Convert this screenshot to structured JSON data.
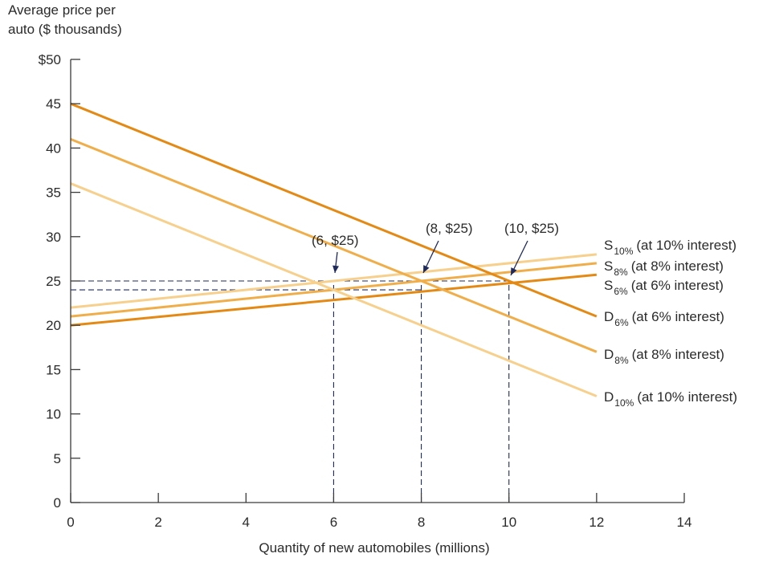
{
  "chart_data": {
    "type": "line",
    "ylabel_line1": "Average price per",
    "ylabel_line2": "auto ($ thousands)",
    "xlabel": "Quantity of new automobiles (millions)",
    "xlim": [
      0,
      14
    ],
    "ylim": [
      0,
      50
    ],
    "x_ticks": [
      "0",
      "2",
      "4",
      "6",
      "8",
      "10",
      "12",
      "14"
    ],
    "y_ticks": [
      "0",
      "5",
      "10",
      "15",
      "20",
      "25",
      "30",
      "35",
      "40",
      "45",
      "$50"
    ],
    "grid": false,
    "series": [
      {
        "id": "s10",
        "kind": "supply",
        "letter": "S",
        "subscript": "10%",
        "label": "(at 10% interest)",
        "color": "#f6d08c",
        "x": [
          0,
          12
        ],
        "y": [
          22,
          28
        ]
      },
      {
        "id": "s8",
        "kind": "supply",
        "letter": "S",
        "subscript": "8%",
        "label": "(at 8% interest)",
        "color": "#f0ae4a",
        "x": [
          0,
          12
        ],
        "y": [
          21,
          27
        ]
      },
      {
        "id": "s6",
        "kind": "supply",
        "letter": "S",
        "subscript": "6%",
        "label": "(at 6% interest)",
        "color": "#e48a14",
        "x": [
          0,
          12
        ],
        "y": [
          20,
          25.7
        ]
      },
      {
        "id": "d6",
        "kind": "demand",
        "letter": "D",
        "subscript": "6%",
        "label": "(at 6% interest)",
        "color": "#e48a14",
        "x": [
          0,
          12
        ],
        "y": [
          45,
          21
        ]
      },
      {
        "id": "d8",
        "kind": "demand",
        "letter": "D",
        "subscript": "8%",
        "label": "(at 8% interest)",
        "color": "#f0ae4a",
        "x": [
          0,
          12
        ],
        "y": [
          41,
          17
        ]
      },
      {
        "id": "d10",
        "kind": "demand",
        "letter": "D",
        "subscript": "10%",
        "label": "(at 10% interest)",
        "color": "#f6d08c",
        "x": [
          0,
          12
        ],
        "y": [
          36,
          12
        ]
      }
    ],
    "annotations": [
      {
        "text": "(6, $25)",
        "x": 6,
        "y": 25
      },
      {
        "text": "(8, $25)",
        "x": 8,
        "y": 25
      },
      {
        "text": "(10, $25)",
        "x": 10,
        "y": 25
      }
    ],
    "reference_lines": {
      "color": "#1f2a5c",
      "horizontal": [
        {
          "y": 25,
          "x_end": 10
        },
        {
          "y": 24,
          "x_end": 8
        }
      ],
      "vertical": [
        6,
        8,
        10
      ]
    }
  }
}
